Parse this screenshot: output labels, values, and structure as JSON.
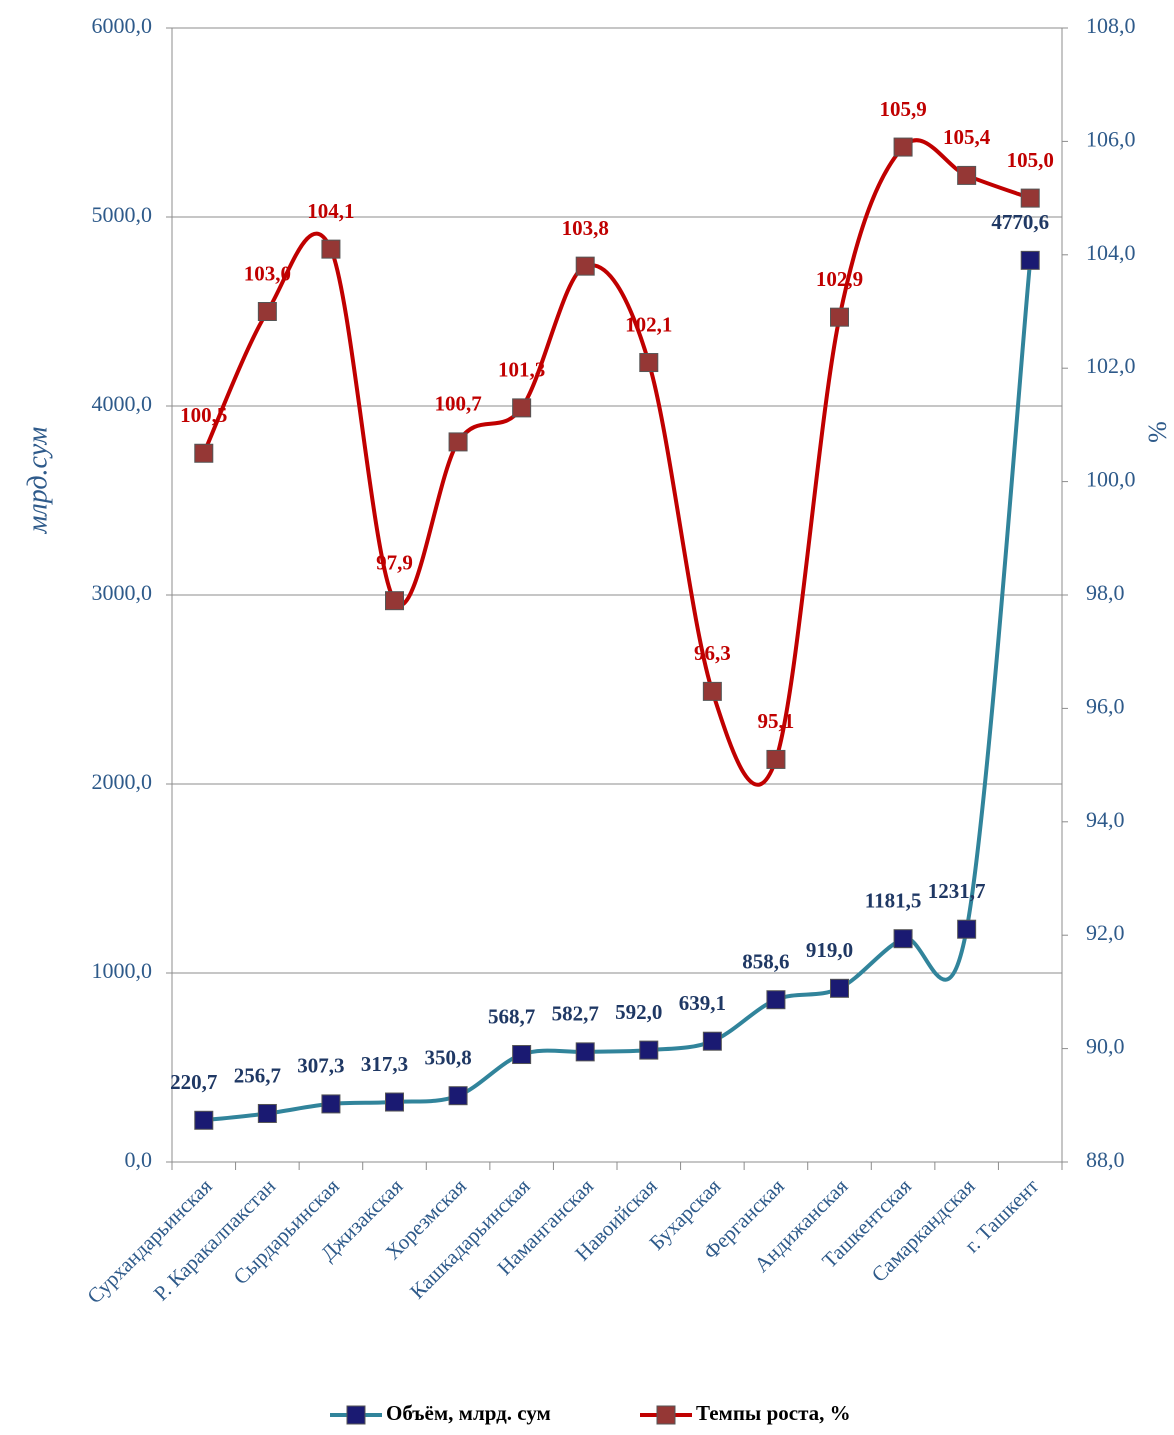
{
  "chart_data": {
    "type": "line",
    "categories": [
      "Сурхандарьинская",
      "Р. Каракалпакстан",
      "Сырдарьинская",
      "Джизакская",
      "Хорезмская",
      "Кашкадарьинская",
      "Наманганская",
      "Навоийская",
      "Бухарская",
      "Ферганская",
      "Андижанская",
      "Ташкентская",
      "Самаркандская",
      "г. Ташкент"
    ],
    "series": [
      {
        "name": "Объём, млрд. сум",
        "color": "#31849b",
        "marker_color": "#1a1a72",
        "values": [
          220.7,
          256.7,
          307.3,
          317.3,
          350.8,
          568.7,
          582.7,
          592.0,
          639.1,
          858.6,
          919.0,
          1181.5,
          1231.7,
          4770.6
        ],
        "value_labels": [
          "220,7",
          "256,7",
          "307,3",
          "317,3",
          "350,8",
          "568,7",
          "582,7",
          "592,0",
          "639,1",
          "858,6",
          "919,0",
          "1181,5",
          "1231,7",
          "4770,6"
        ]
      },
      {
        "name": "Темпы роста, %",
        "color": "#c00000",
        "marker_color": "#953735",
        "axis": "y2",
        "values": [
          100.5,
          103.0,
          104.1,
          97.9,
          100.7,
          101.3,
          103.8,
          102.1,
          96.3,
          95.1,
          102.9,
          105.9,
          105.4,
          105.0
        ],
        "value_labels": [
          "100,5",
          "103,0",
          "104,1",
          "97,9",
          "100,7",
          "101,3",
          "103,8",
          "102,1",
          "96,3",
          "95,1",
          "102,9",
          "105,9",
          "105,4",
          "105,0"
        ]
      }
    ],
    "y_label": "млрд.сум",
    "y2_label": "%",
    "ylim": [
      0,
      6000
    ],
    "yticks": [
      {
        "value": 0,
        "label": "0,0"
      },
      {
        "value": 1000,
        "label": "1000,0"
      },
      {
        "value": 2000,
        "label": "2000,0"
      },
      {
        "value": 3000,
        "label": "3000,0"
      },
      {
        "value": 4000,
        "label": "4000,0"
      },
      {
        "value": 5000,
        "label": "5000,0"
      },
      {
        "value": 6000,
        "label": "6000,0"
      }
    ],
    "y2lim": [
      88,
      108
    ],
    "y2ticks": [
      {
        "value": 88,
        "label": "88,0"
      },
      {
        "value": 90,
        "label": "90,0"
      },
      {
        "value": 92,
        "label": "92,0"
      },
      {
        "value": 94,
        "label": "94,0"
      },
      {
        "value": 96,
        "label": "96,0"
      },
      {
        "value": 98,
        "label": "98,0"
      },
      {
        "value": 100,
        "label": "100,0"
      },
      {
        "value": 102,
        "label": "102,0"
      },
      {
        "value": 104,
        "label": "104,0"
      },
      {
        "value": 106,
        "label": "106,0"
      },
      {
        "value": 108,
        "label": "108,0"
      }
    ],
    "grid": true,
    "legend": "bottom",
    "smooth": true
  }
}
